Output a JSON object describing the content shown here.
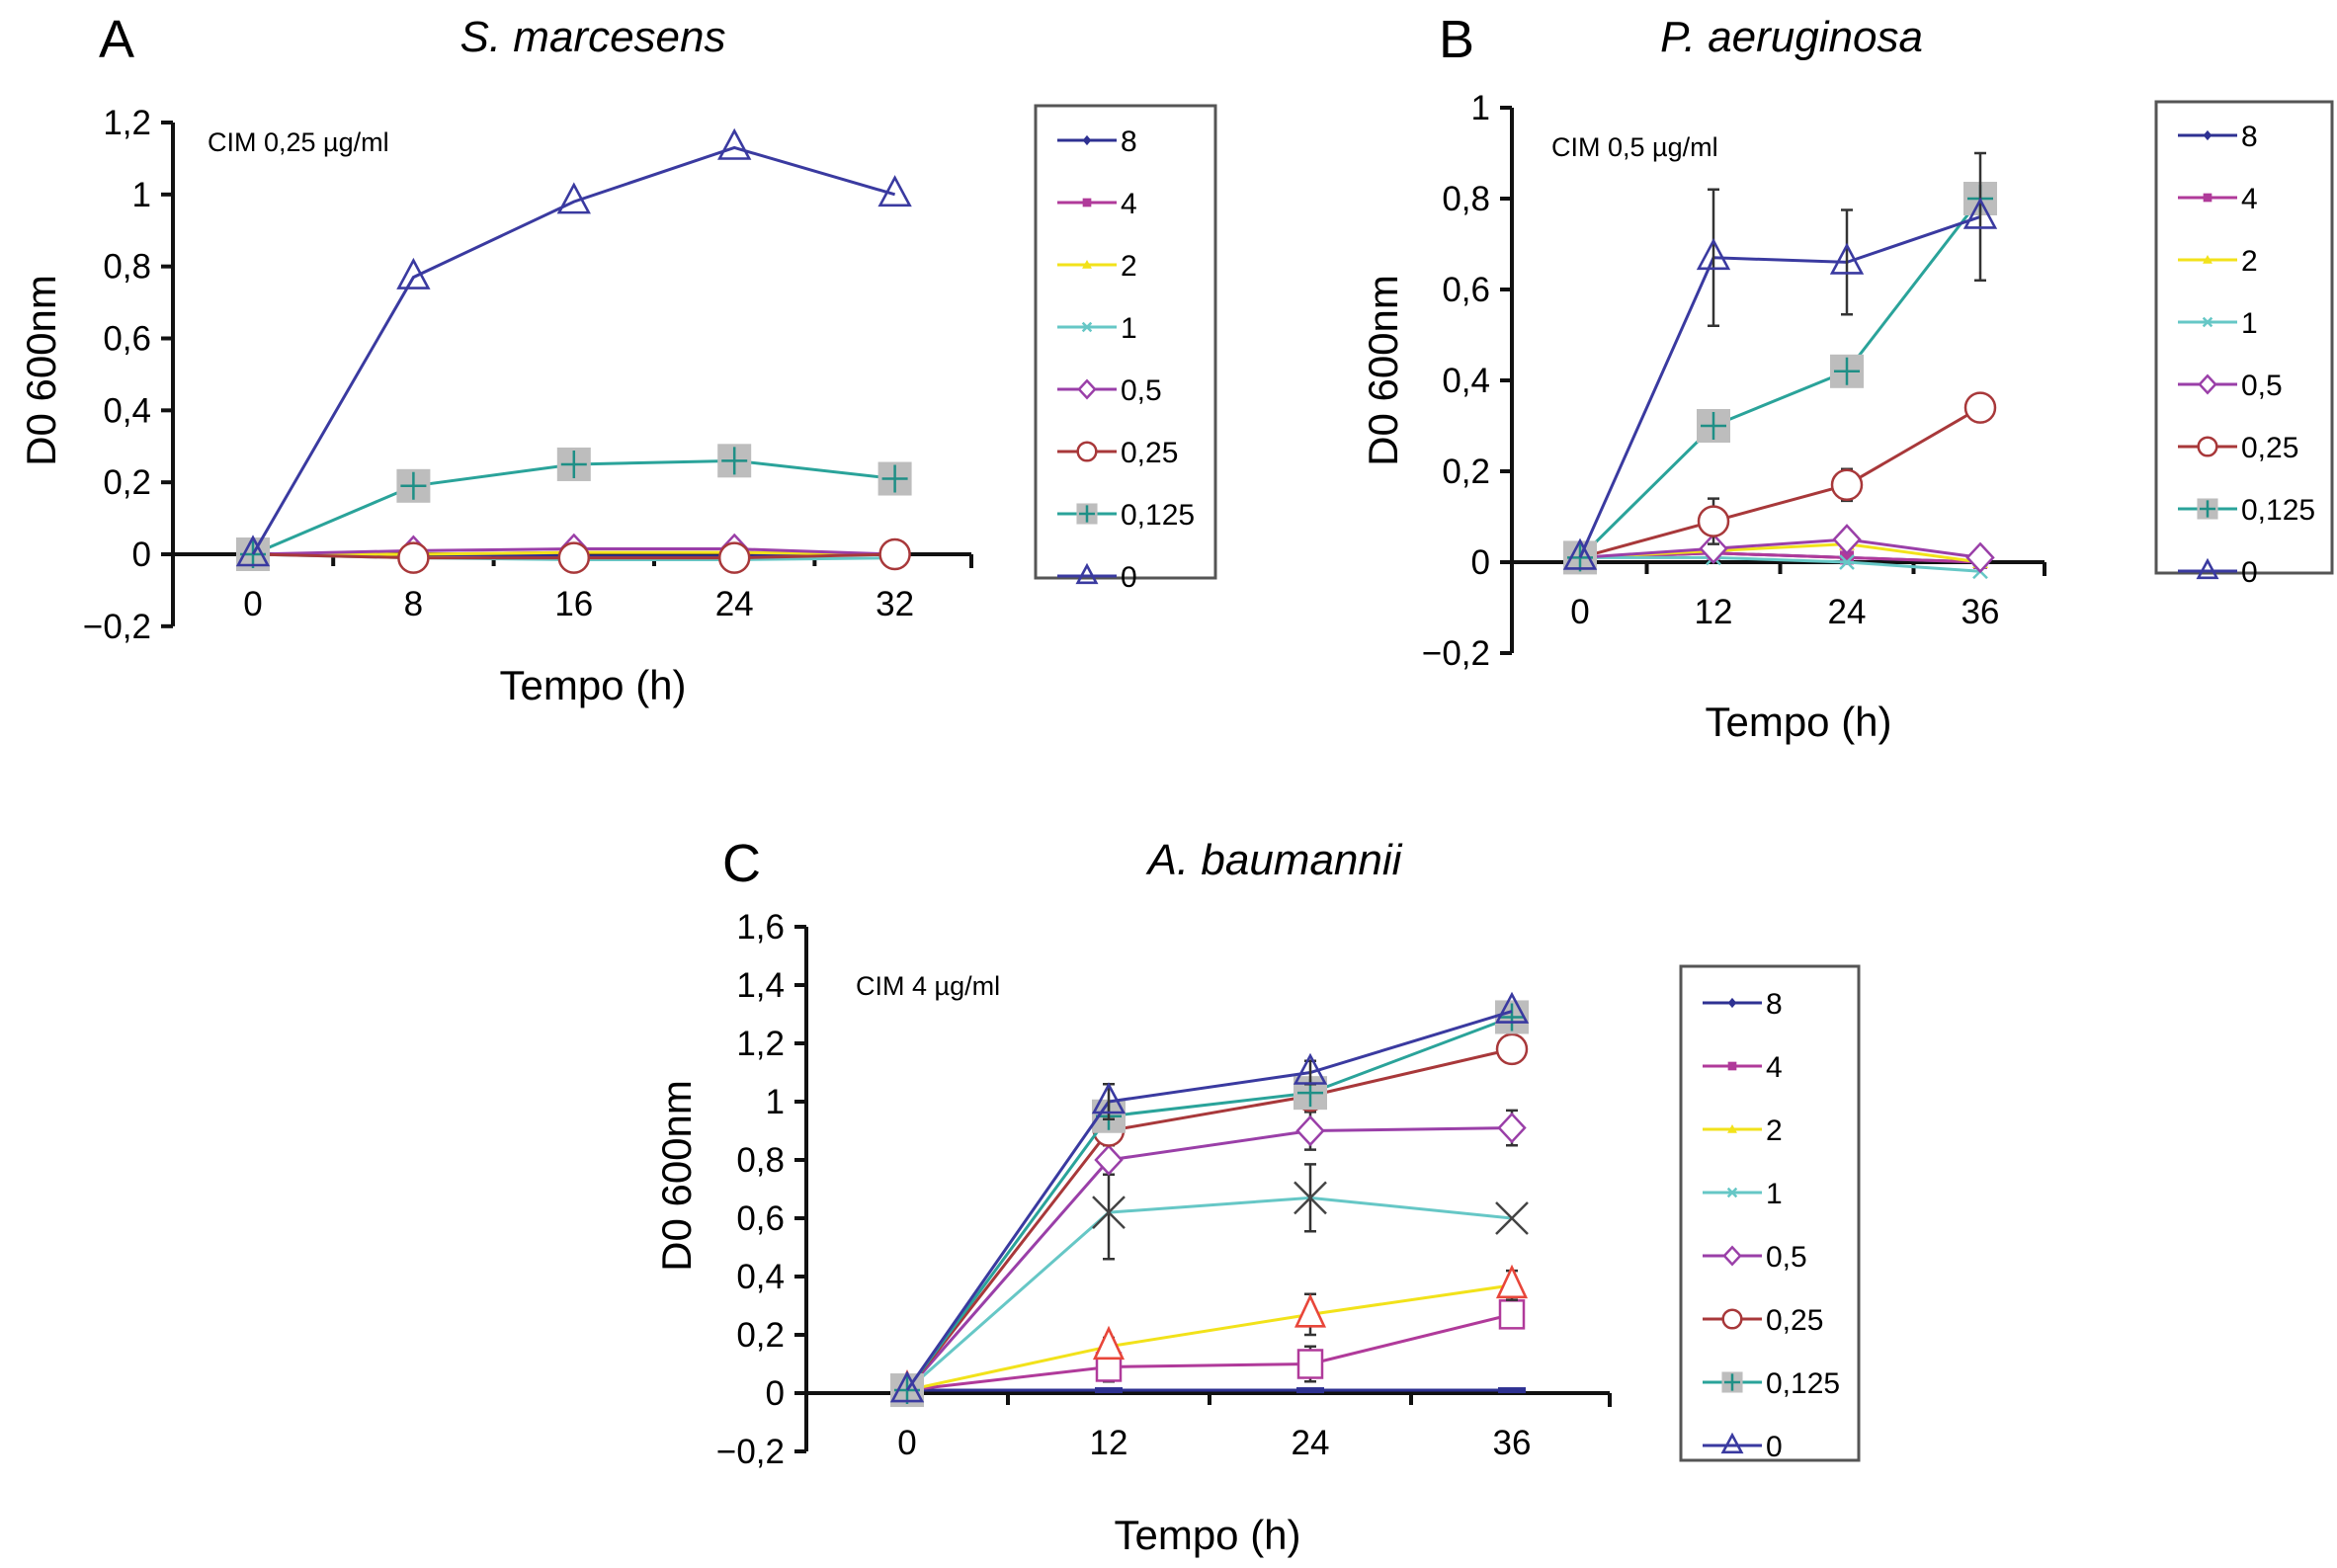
{
  "chart_data": [
    {
      "panel": "A",
      "type": "line",
      "title": "S. marcesens",
      "annotation": "CIM 0,25 µg/ml",
      "xlabel": "Tempo (h)",
      "ylabel": "D0 600nm",
      "x": [
        0,
        8,
        16,
        24,
        32
      ],
      "xticks": [
        "0",
        "8",
        "16",
        "24",
        "32"
      ],
      "yticks": [
        "−0,2",
        "0",
        "0,2",
        "0,4",
        "0,6",
        "0,8",
        "1",
        "1,2"
      ],
      "ylim": [
        -0.2,
        1.2
      ],
      "grid": false,
      "legend_title": "",
      "legend_placement": "right",
      "series": [
        {
          "name": "8",
          "color": "#2e3192",
          "marker": "diamond-filled",
          "values": [
            0,
            0,
            -0.005,
            -0.005,
            0
          ]
        },
        {
          "name": "4",
          "color": "#b03a9a",
          "marker": "square-filled",
          "values": [
            0,
            0,
            0.005,
            0.005,
            0
          ]
        },
        {
          "name": "2",
          "color": "#f2e21a",
          "marker": "triangle-filled",
          "values": [
            0,
            0,
            0.005,
            0.005,
            0
          ]
        },
        {
          "name": "1",
          "color": "#66c7c6",
          "marker": "x",
          "values": [
            0,
            -0.01,
            -0.015,
            -0.015,
            -0.01
          ]
        },
        {
          "name": "0,5",
          "color": "#9a3fa8",
          "marker": "diamond-open",
          "values": [
            0,
            0.01,
            0.015,
            0.015,
            0
          ]
        },
        {
          "name": "0,25",
          "color": "#a8383a",
          "marker": "circle-open",
          "values": [
            0,
            -0.01,
            -0.01,
            -0.01,
            0
          ]
        },
        {
          "name": "0,125",
          "color": "#2aa39a",
          "marker": "grey-square-plus",
          "values": [
            0,
            0.19,
            0.25,
            0.26,
            0.21
          ]
        },
        {
          "name": "0",
          "color": "#3a3aa0",
          "marker": "triangle-open",
          "values": [
            0,
            0.77,
            0.98,
            1.13,
            1.0
          ]
        }
      ]
    },
    {
      "panel": "B",
      "type": "line",
      "title": "P. aeruginosa",
      "annotation": "CIM 0,5 µg/ml",
      "xlabel": "Tempo (h)",
      "ylabel": "D0 600nm",
      "x": [
        0,
        12,
        24,
        36
      ],
      "xticks": [
        "0",
        "12",
        "24",
        "36"
      ],
      "yticks": [
        "−0,2",
        "0",
        "0,2",
        "0,4",
        "0,6",
        "0,8",
        "1"
      ],
      "ylim": [
        -0.2,
        1.0
      ],
      "grid": false,
      "legend_placement": "right",
      "series": [
        {
          "name": "8",
          "color": "#2e3192",
          "marker": "diamond-filled",
          "values": [
            0.01,
            0.02,
            0.01,
            0.0
          ]
        },
        {
          "name": "4",
          "color": "#b03a9a",
          "marker": "square-filled",
          "values": [
            0.01,
            0.02,
            0.01,
            0.0
          ]
        },
        {
          "name": "2",
          "color": "#f2e21a",
          "marker": "triangle-filled",
          "values": [
            0.01,
            0.025,
            0.04,
            0.0
          ]
        },
        {
          "name": "1",
          "color": "#66c7c6",
          "marker": "x",
          "values": [
            0.01,
            0.01,
            0.0,
            -0.02
          ]
        },
        {
          "name": "0,5",
          "color": "#9a3fa8",
          "marker": "diamond-open",
          "values": [
            0.01,
            0.03,
            0.05,
            0.01
          ]
        },
        {
          "name": "0,25",
          "color": "#a8383a",
          "marker": "circle-open",
          "values": [
            0.01,
            0.09,
            0.17,
            0.34
          ],
          "errors": [
            0,
            0.05,
            0.035,
            0.03
          ]
        },
        {
          "name": "0,125",
          "color": "#2aa39a",
          "marker": "grey-square-plus",
          "values": [
            0.01,
            0.3,
            0.42,
            0.8
          ]
        },
        {
          "name": "0",
          "color": "#3a3aa0",
          "marker": "triangle-open",
          "values": [
            0.01,
            0.67,
            0.66,
            0.76
          ],
          "errors": [
            0,
            0.15,
            0.115,
            0.14
          ]
        }
      ]
    },
    {
      "panel": "C",
      "type": "line",
      "title": "A. baumannii",
      "annotation": "CIM 4 µg/ml",
      "xlabel": "Tempo (h)",
      "ylabel": "D0 600nm",
      "x": [
        0,
        12,
        24,
        36
      ],
      "xticks": [
        "0",
        "12",
        "24",
        "36"
      ],
      "yticks": [
        "−0,2",
        "0",
        "0,2",
        "0,4",
        "0,6",
        "0,8",
        "1",
        "1,2",
        "1,4",
        "1,6"
      ],
      "ylim": [
        -0.2,
        1.6
      ],
      "grid": false,
      "legend_placement": "right",
      "series": [
        {
          "name": "8",
          "color": "#2e3192",
          "marker": "dash",
          "values": [
            0.01,
            0.01,
            0.01,
            0.01
          ]
        },
        {
          "name": "4",
          "color": "#b03a9a",
          "marker": "square-open",
          "values": [
            0.01,
            0.09,
            0.1,
            0.27
          ],
          "errors": [
            0,
            0.05,
            0.06,
            0.045
          ]
        },
        {
          "name": "2",
          "color": "#f2e21a",
          "marker": "triangle-open-red",
          "values": [
            0.01,
            0.16,
            0.27,
            0.37
          ],
          "errors": [
            0,
            0.03,
            0.07,
            0.05
          ]
        },
        {
          "name": "1",
          "color": "#66c7c6",
          "marker": "x-dark",
          "values": [
            0.01,
            0.62,
            0.67,
            0.6
          ],
          "errors": [
            0,
            0.16,
            0.115,
            0
          ]
        },
        {
          "name": "0,5",
          "color": "#9a3fa8",
          "marker": "diamond-open",
          "values": [
            0.01,
            0.8,
            0.9,
            0.91
          ],
          "errors": [
            0,
            0.05,
            0.065,
            0.06
          ]
        },
        {
          "name": "0,25",
          "color": "#a8383a",
          "marker": "circle-open",
          "values": [
            0.01,
            0.9,
            1.02,
            1.18
          ]
        },
        {
          "name": "0,125",
          "color": "#2aa39a",
          "marker": "grey-square-plus",
          "values": [
            0.01,
            0.95,
            1.03,
            1.29
          ]
        },
        {
          "name": "0",
          "color": "#3a3aa0",
          "marker": "triangle-open",
          "values": [
            0.01,
            1.0,
            1.1,
            1.31
          ],
          "errors": [
            0,
            0.06,
            0.04,
            0
          ]
        }
      ]
    }
  ]
}
